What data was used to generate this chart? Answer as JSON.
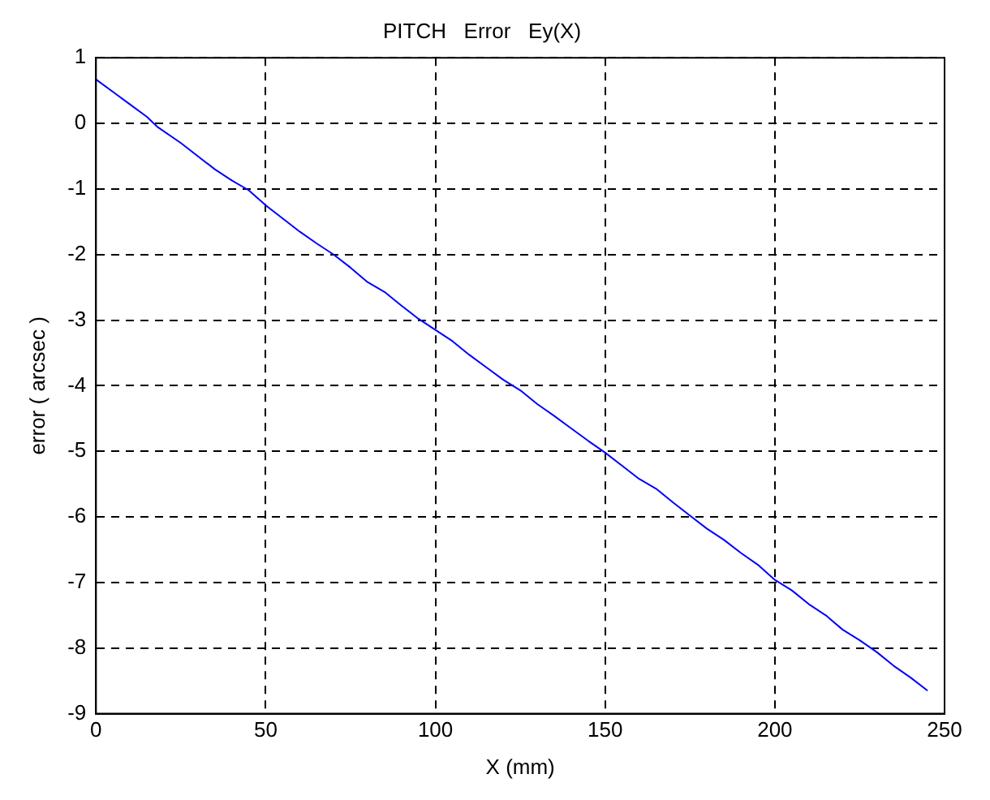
{
  "chart_data": {
    "type": "line",
    "title": "PITCH   Error   Ey(X)",
    "xlabel": "X (mm)",
    "ylabel": "error ( arcsec )",
    "series": [
      {
        "color": "#0000ff",
        "x": [
          0,
          5,
          10,
          15,
          18,
          25,
          30,
          35,
          40,
          45,
          50,
          55,
          60,
          65,
          70,
          75,
          80,
          85,
          90,
          95,
          100,
          105,
          110,
          115,
          120,
          125,
          130,
          135,
          140,
          145,
          150,
          155,
          160,
          165,
          170,
          175,
          180,
          185,
          190,
          195,
          200,
          205,
          210,
          215,
          220,
          225,
          230,
          235,
          240,
          245
        ],
        "values": [
          0.67,
          0.48,
          0.29,
          0.1,
          -0.05,
          -0.3,
          -0.5,
          -0.7,
          -0.87,
          -1.02,
          -1.25,
          -1.45,
          -1.65,
          -1.83,
          -2.0,
          -2.2,
          -2.42,
          -2.57,
          -2.78,
          -2.98,
          -3.15,
          -3.32,
          -3.53,
          -3.72,
          -3.91,
          -4.07,
          -4.28,
          -4.46,
          -4.65,
          -4.84,
          -5.02,
          -5.22,
          -5.42,
          -5.57,
          -5.78,
          -5.98,
          -6.18,
          -6.35,
          -6.55,
          -6.73,
          -6.96,
          -7.12,
          -7.33,
          -7.5,
          -7.72,
          -7.88,
          -8.06,
          -8.27,
          -8.45,
          -8.65
        ]
      }
    ],
    "xlim": [
      0,
      250
    ],
    "xticks": [
      0,
      50,
      100,
      150,
      200,
      250
    ],
    "ylim": [
      -9,
      1
    ],
    "yticks": [
      -9,
      -8,
      -7,
      -6,
      -5,
      -4,
      -3,
      -2,
      -1,
      0,
      1
    ],
    "grid": true,
    "legend": false,
    "marker": "none",
    "line_style": "solid"
  }
}
